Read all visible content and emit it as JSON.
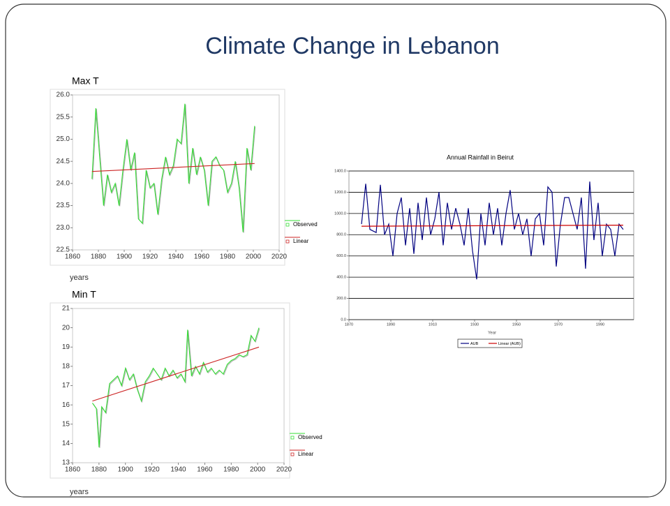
{
  "title": "Climate Change in Lebanon",
  "chart_data": [
    {
      "type": "line",
      "title": "Max T",
      "xlabel": "years",
      "xlim": [
        1860,
        2020
      ],
      "xticks": [
        1860,
        1880,
        1900,
        1920,
        1940,
        1960,
        1980,
        2000,
        2020
      ],
      "ylim": [
        22.5,
        26
      ],
      "yticks": [
        22.5,
        {
          "value": 23,
          "label": "23.0"
        },
        23.5,
        {
          "value": 24,
          "label": "24.0"
        },
        24.5,
        {
          "value": 25,
          "label": "25.0"
        },
        25.5,
        {
          "value": 26,
          "label": "26.0"
        }
      ],
      "grid": false,
      "legend": "right",
      "series": [
        {
          "name": "Observed",
          "color": "#33dd33",
          "x": [
            1875,
            1878,
            1881,
            1884,
            1887,
            1890,
            1893,
            1896,
            1899,
            1902,
            1905,
            1908,
            1911,
            1914,
            1917,
            1920,
            1923,
            1926,
            1929,
            1932,
            1935,
            1938,
            1941,
            1944,
            1947,
            1950,
            1953,
            1956,
            1959,
            1962,
            1965,
            1968,
            1971,
            1974,
            1977,
            1980,
            1983,
            1986,
            1989,
            1992,
            1995,
            1998,
            2001
          ],
          "values": [
            24.1,
            25.7,
            24.6,
            23.5,
            24.2,
            23.8,
            24.0,
            23.5,
            24.3,
            25.0,
            24.3,
            24.7,
            23.2,
            23.1,
            24.3,
            23.9,
            24.0,
            23.3,
            24.1,
            24.6,
            24.2,
            24.4,
            25.0,
            24.9,
            25.8,
            24.0,
            24.8,
            24.2,
            24.6,
            24.3,
            23.5,
            24.5,
            24.6,
            24.4,
            24.3,
            23.8,
            24.0,
            24.5,
            23.9,
            22.9,
            24.8,
            24.3,
            25.3
          ]
        },
        {
          "name": "Linear",
          "color": "#cc2222",
          "x": [
            1875,
            2001
          ],
          "values": [
            24.27,
            24.45
          ]
        }
      ]
    },
    {
      "type": "line",
      "title": "Min T",
      "xlabel": "years",
      "xlim": [
        1860,
        2020
      ],
      "xticks": [
        1860,
        1880,
        1900,
        1920,
        1940,
        1960,
        1980,
        2000,
        2020
      ],
      "ylim": [
        13,
        21
      ],
      "yticks": [
        13,
        14,
        15,
        16,
        17,
        18,
        19,
        20,
        21
      ],
      "grid": false,
      "legend": "right",
      "series": [
        {
          "name": "Observed",
          "color": "#33dd33",
          "x": [
            1875,
            1878,
            1880,
            1882,
            1885,
            1888,
            1891,
            1894,
            1897,
            1900,
            1903,
            1906,
            1909,
            1912,
            1915,
            1918,
            1921,
            1924,
            1927,
            1930,
            1933,
            1936,
            1939,
            1942,
            1945,
            1947,
            1950,
            1953,
            1956,
            1959,
            1962,
            1965,
            1968,
            1971,
            1974,
            1977,
            1980,
            1983,
            1986,
            1989,
            1992,
            1995,
            1998,
            2001
          ],
          "values": [
            16.1,
            15.8,
            13.8,
            15.9,
            15.6,
            17.1,
            17.3,
            17.5,
            17.0,
            17.9,
            17.3,
            17.6,
            16.8,
            16.2,
            17.2,
            17.5,
            17.9,
            17.6,
            17.3,
            17.9,
            17.5,
            17.8,
            17.4,
            17.6,
            17.2,
            19.9,
            17.5,
            18.0,
            17.6,
            18.2,
            17.7,
            17.9,
            17.6,
            17.8,
            17.6,
            18.1,
            18.3,
            18.4,
            18.6,
            18.5,
            18.6,
            19.6,
            19.3,
            20.0
          ]
        },
        {
          "name": "Linear",
          "color": "#cc2222",
          "x": [
            1875,
            2001
          ],
          "values": [
            16.2,
            19.0
          ]
        }
      ]
    },
    {
      "type": "line",
      "title": "Annual Rainfall in Beirut",
      "xlabel": "Year",
      "xlim": [
        1870,
        2006
      ],
      "xticks": [
        1870,
        1890,
        1910,
        1930,
        1950,
        1970,
        1990
      ],
      "ylim": [
        0,
        1400
      ],
      "yticks": [
        {
          "value": 0,
          "label": "0.0"
        },
        {
          "value": 200,
          "label": "200.0"
        },
        {
          "value": 400,
          "label": "400.0"
        },
        {
          "value": 600,
          "label": "600.0"
        },
        {
          "value": 800,
          "label": "800.0"
        },
        {
          "value": 1000,
          "label": "1000.0"
        },
        {
          "value": 1200,
          "label": "1200.0"
        },
        {
          "value": 1400,
          "label": "1400.0"
        }
      ],
      "grid": true,
      "legend": "bottom",
      "series": [
        {
          "name": "AUB",
          "color": "#000080",
          "x": [
            1876,
            1878,
            1880,
            1883,
            1885,
            1887,
            1889,
            1891,
            1893,
            1895,
            1897,
            1899,
            1901,
            1903,
            1905,
            1907,
            1909,
            1911,
            1913,
            1915,
            1917,
            1919,
            1921,
            1923,
            1925,
            1927,
            1929,
            1931,
            1933,
            1935,
            1937,
            1939,
            1941,
            1943,
            1945,
            1947,
            1949,
            1951,
            1953,
            1955,
            1957,
            1959,
            1961,
            1963,
            1965,
            1967,
            1969,
            1971,
            1973,
            1975,
            1977,
            1979,
            1981,
            1983,
            1985,
            1987,
            1989,
            1991,
            1993,
            1995,
            1997,
            1999,
            2001
          ],
          "values": [
            900,
            1280,
            850,
            820,
            1270,
            800,
            900,
            600,
            1000,
            1150,
            700,
            1050,
            620,
            1100,
            750,
            1150,
            800,
            950,
            1200,
            700,
            1100,
            850,
            1050,
            900,
            700,
            1050,
            650,
            380,
            1000,
            700,
            1100,
            800,
            1050,
            700,
            1000,
            1220,
            850,
            1000,
            800,
            950,
            600,
            950,
            1000,
            700,
            1250,
            1200,
            500,
            900,
            1150,
            1150,
            1000,
            850,
            1150,
            480,
            1300,
            750,
            1100,
            600,
            900,
            850,
            600,
            900,
            850
          ]
        },
        {
          "name": "Linear (AUB)",
          "color": "#cc0000",
          "x": [
            1876,
            2001
          ],
          "values": [
            880,
            890
          ]
        }
      ]
    }
  ]
}
